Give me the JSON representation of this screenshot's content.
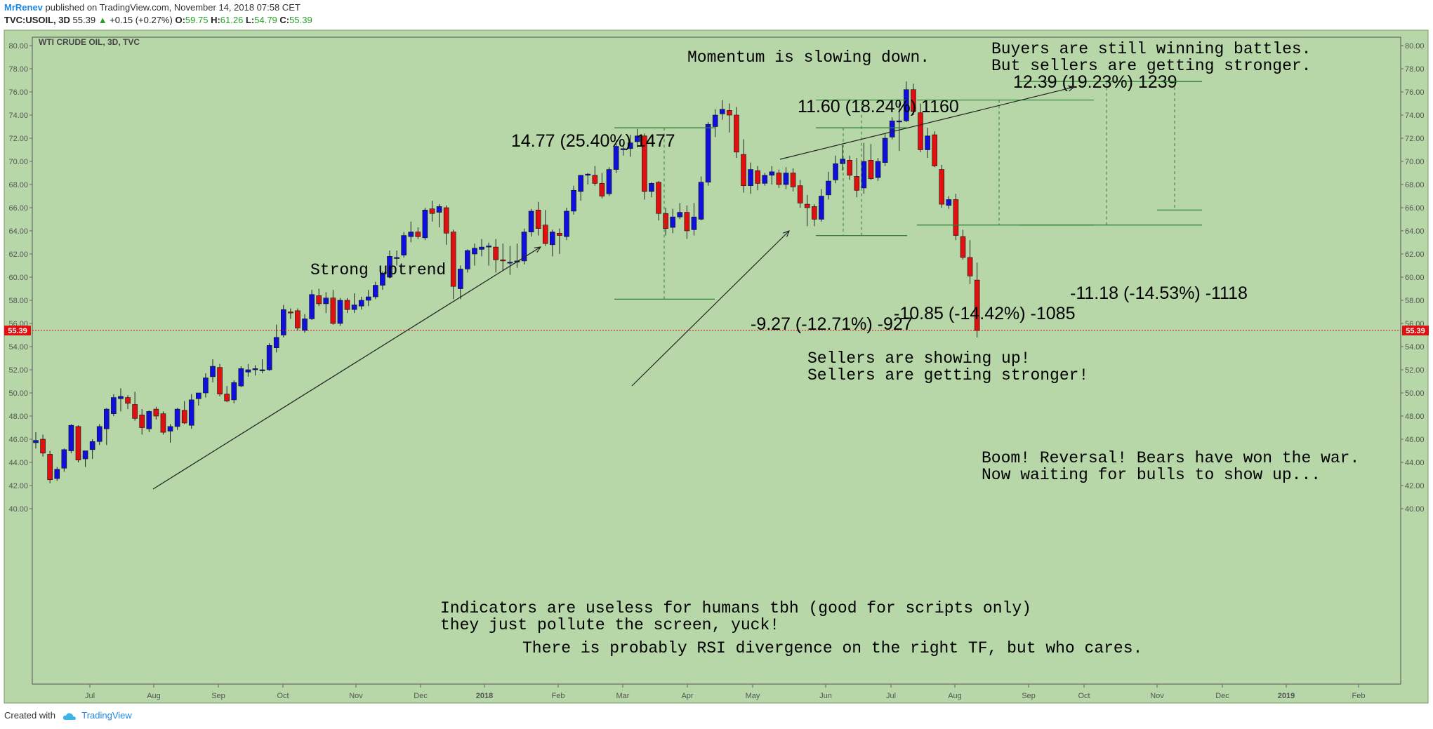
{
  "header": {
    "author": "MrRenev",
    "published": "published on TradingView.com, November 14, 2018 07:58 CET",
    "symbol": "TVC:USOIL, 3D",
    "last": "55.39",
    "up_arrow": "▲",
    "change": "+0.15 (+0.27%)",
    "o_label": "O:",
    "o_value": "59.75",
    "h_label": "H:",
    "h_value": "61.26",
    "l_label": "L:",
    "l_value": "54.79",
    "c_label": "C:",
    "c_value": "55.39"
  },
  "footer": {
    "created_with": "Created with",
    "tv_icon": "tradingview-cloud-icon",
    "brand": "TradingView"
  },
  "colors": {
    "background": "#b7d7a8",
    "bull": "#1010dd",
    "bear": "#e01010",
    "price_line": "#e01010",
    "measure": "#2e7d32",
    "author": "#1e88e5"
  },
  "chart_data": {
    "type": "candlestick",
    "title": "WTI CRUDE OIL, 3D, TVC",
    "ylim": [
      38.5,
      81.0
    ],
    "y_ticks": [
      "40.00",
      "42.00",
      "44.00",
      "46.00",
      "48.00",
      "50.00",
      "52.00",
      "54.00",
      "56.00",
      "58.00",
      "60.00",
      "62.00",
      "64.00",
      "66.00",
      "68.00",
      "70.00",
      "72.00",
      "74.00",
      "76.00",
      "78.00",
      "80.00"
    ],
    "x_ticks": [
      "Jul",
      "Aug",
      "Sep",
      "Oct",
      "Nov",
      "Dec",
      "2018",
      "Feb",
      "Mar",
      "Apr",
      "May",
      "Jun",
      "Jul",
      "Aug",
      "Sep",
      "Oct",
      "Nov",
      "Dec",
      "2019",
      "Feb"
    ],
    "last_price": "55.39",
    "candles": [
      {
        "o": 45.7,
        "h": 46.6,
        "l": 45.2,
        "c": 45.9
      },
      {
        "o": 46.0,
        "h": 46.4,
        "l": 44.5,
        "c": 44.8
      },
      {
        "o": 44.7,
        "h": 45.0,
        "l": 42.2,
        "c": 42.5
      },
      {
        "o": 42.6,
        "h": 43.6,
        "l": 42.4,
        "c": 43.4
      },
      {
        "o": 43.5,
        "h": 45.2,
        "l": 43.2,
        "c": 45.1
      },
      {
        "o": 45.0,
        "h": 47.3,
        "l": 44.8,
        "c": 47.2
      },
      {
        "o": 47.1,
        "h": 47.2,
        "l": 44.0,
        "c": 44.2
      },
      {
        "o": 44.3,
        "h": 45.0,
        "l": 43.6,
        "c": 45.0
      },
      {
        "o": 45.1,
        "h": 46.0,
        "l": 44.3,
        "c": 45.8
      },
      {
        "o": 45.8,
        "h": 47.3,
        "l": 45.5,
        "c": 47.1
      },
      {
        "o": 46.9,
        "h": 48.7,
        "l": 45.5,
        "c": 48.6
      },
      {
        "o": 48.2,
        "h": 49.9,
        "l": 48.0,
        "c": 49.6
      },
      {
        "o": 49.5,
        "h": 50.4,
        "l": 48.4,
        "c": 49.7
      },
      {
        "o": 49.6,
        "h": 49.8,
        "l": 48.6,
        "c": 49.1
      },
      {
        "o": 49.0,
        "h": 50.1,
        "l": 47.6,
        "c": 47.8
      },
      {
        "o": 48.1,
        "h": 48.6,
        "l": 46.4,
        "c": 47.0
      },
      {
        "o": 46.9,
        "h": 48.5,
        "l": 46.6,
        "c": 48.4
      },
      {
        "o": 48.6,
        "h": 48.8,
        "l": 47.7,
        "c": 48.0
      },
      {
        "o": 48.2,
        "h": 48.4,
        "l": 46.4,
        "c": 46.6
      },
      {
        "o": 46.7,
        "h": 47.3,
        "l": 45.7,
        "c": 47.1
      },
      {
        "o": 47.1,
        "h": 48.7,
        "l": 46.8,
        "c": 48.6
      },
      {
        "o": 48.5,
        "h": 49.3,
        "l": 47.3,
        "c": 47.4
      },
      {
        "o": 47.2,
        "h": 49.9,
        "l": 46.9,
        "c": 49.4
      },
      {
        "o": 49.5,
        "h": 50.0,
        "l": 48.9,
        "c": 50.0
      },
      {
        "o": 50.0,
        "h": 51.7,
        "l": 49.6,
        "c": 51.3
      },
      {
        "o": 51.4,
        "h": 52.9,
        "l": 50.9,
        "c": 52.3
      },
      {
        "o": 52.2,
        "h": 52.5,
        "l": 49.7,
        "c": 49.9
      },
      {
        "o": 49.9,
        "h": 50.6,
        "l": 49.2,
        "c": 49.3
      },
      {
        "o": 49.4,
        "h": 51.1,
        "l": 49.1,
        "c": 50.9
      },
      {
        "o": 50.6,
        "h": 52.3,
        "l": 50.5,
        "c": 52.1
      },
      {
        "o": 51.8,
        "h": 52.5,
        "l": 51.4,
        "c": 52.0
      },
      {
        "o": 52.0,
        "h": 52.4,
        "l": 51.5,
        "c": 52.1
      },
      {
        "o": 52.0,
        "h": 52.9,
        "l": 51.7,
        "c": 52.0
      },
      {
        "o": 52.0,
        "h": 54.3,
        "l": 51.9,
        "c": 54.1
      },
      {
        "o": 53.9,
        "h": 55.9,
        "l": 53.5,
        "c": 54.8
      },
      {
        "o": 55.0,
        "h": 57.6,
        "l": 54.8,
        "c": 57.2
      },
      {
        "o": 57.0,
        "h": 57.3,
        "l": 56.4,
        "c": 56.9
      },
      {
        "o": 57.1,
        "h": 57.3,
        "l": 55.4,
        "c": 55.6
      },
      {
        "o": 55.4,
        "h": 56.8,
        "l": 55.2,
        "c": 56.4
      },
      {
        "o": 56.4,
        "h": 58.9,
        "l": 56.3,
        "c": 58.5
      },
      {
        "o": 58.4,
        "h": 59.0,
        "l": 57.5,
        "c": 57.7
      },
      {
        "o": 57.7,
        "h": 58.7,
        "l": 56.9,
        "c": 58.2
      },
      {
        "o": 58.2,
        "h": 58.9,
        "l": 55.9,
        "c": 56.0
      },
      {
        "o": 56.0,
        "h": 58.2,
        "l": 55.8,
        "c": 58.0
      },
      {
        "o": 58.0,
        "h": 58.2,
        "l": 56.9,
        "c": 57.2
      },
      {
        "o": 57.2,
        "h": 58.6,
        "l": 56.9,
        "c": 57.6
      },
      {
        "o": 57.5,
        "h": 58.3,
        "l": 57.2,
        "c": 58.0
      },
      {
        "o": 58.0,
        "h": 58.9,
        "l": 57.5,
        "c": 58.3
      },
      {
        "o": 58.3,
        "h": 59.6,
        "l": 58.1,
        "c": 59.3
      },
      {
        "o": 59.3,
        "h": 60.5,
        "l": 58.9,
        "c": 60.3
      },
      {
        "o": 60.0,
        "h": 62.3,
        "l": 59.9,
        "c": 61.8
      },
      {
        "o": 61.7,
        "h": 62.3,
        "l": 61.0,
        "c": 61.7
      },
      {
        "o": 61.9,
        "h": 63.9,
        "l": 61.7,
        "c": 63.6
      },
      {
        "o": 63.5,
        "h": 64.8,
        "l": 63.0,
        "c": 63.9
      },
      {
        "o": 63.9,
        "h": 64.3,
        "l": 63.3,
        "c": 63.5
      },
      {
        "o": 63.4,
        "h": 66.0,
        "l": 63.2,
        "c": 65.8
      },
      {
        "o": 65.9,
        "h": 66.6,
        "l": 64.8,
        "c": 65.5
      },
      {
        "o": 65.6,
        "h": 66.3,
        "l": 64.3,
        "c": 66.1
      },
      {
        "o": 66.0,
        "h": 66.2,
        "l": 62.8,
        "c": 63.8
      },
      {
        "o": 63.9,
        "h": 64.1,
        "l": 58.1,
        "c": 59.2
      },
      {
        "o": 59.0,
        "h": 61.0,
        "l": 58.1,
        "c": 60.7
      },
      {
        "o": 60.7,
        "h": 62.4,
        "l": 60.4,
        "c": 62.3
      },
      {
        "o": 62.0,
        "h": 62.9,
        "l": 61.0,
        "c": 62.5
      },
      {
        "o": 62.4,
        "h": 63.3,
        "l": 61.8,
        "c": 62.6
      },
      {
        "o": 62.6,
        "h": 63.0,
        "l": 61.0,
        "c": 62.7
      },
      {
        "o": 62.6,
        "h": 63.3,
        "l": 60.4,
        "c": 61.5
      },
      {
        "o": 61.5,
        "h": 62.9,
        "l": 60.6,
        "c": 61.4
      },
      {
        "o": 61.3,
        "h": 62.7,
        "l": 60.2,
        "c": 61.3
      },
      {
        "o": 61.3,
        "h": 62.9,
        "l": 60.8,
        "c": 61.4
      },
      {
        "o": 61.4,
        "h": 64.2,
        "l": 61.1,
        "c": 63.9
      },
      {
        "o": 63.9,
        "h": 65.9,
        "l": 63.5,
        "c": 65.7
      },
      {
        "o": 65.8,
        "h": 66.5,
        "l": 63.6,
        "c": 64.2
      },
      {
        "o": 64.5,
        "h": 65.8,
        "l": 62.7,
        "c": 62.9
      },
      {
        "o": 62.8,
        "h": 64.1,
        "l": 61.8,
        "c": 63.9
      },
      {
        "o": 63.8,
        "h": 64.2,
        "l": 62.0,
        "c": 63.6
      },
      {
        "o": 63.5,
        "h": 66.0,
        "l": 63.2,
        "c": 65.7
      },
      {
        "o": 65.7,
        "h": 67.9,
        "l": 65.4,
        "c": 67.5
      },
      {
        "o": 67.4,
        "h": 68.7,
        "l": 66.6,
        "c": 68.8
      },
      {
        "o": 68.8,
        "h": 69.0,
        "l": 68.0,
        "c": 68.9
      },
      {
        "o": 68.8,
        "h": 69.6,
        "l": 67.9,
        "c": 68.1
      },
      {
        "o": 68.1,
        "h": 69.0,
        "l": 66.8,
        "c": 67.0
      },
      {
        "o": 67.2,
        "h": 69.5,
        "l": 67.0,
        "c": 69.3
      },
      {
        "o": 69.3,
        "h": 71.8,
        "l": 69.0,
        "c": 71.3
      },
      {
        "o": 71.0,
        "h": 71.5,
        "l": 70.5,
        "c": 71.1
      },
      {
        "o": 71.1,
        "h": 72.3,
        "l": 70.4,
        "c": 71.6
      },
      {
        "o": 71.7,
        "h": 72.8,
        "l": 71.2,
        "c": 72.2
      },
      {
        "o": 72.2,
        "h": 72.4,
        "l": 66.7,
        "c": 67.4
      },
      {
        "o": 67.4,
        "h": 68.2,
        "l": 66.9,
        "c": 68.1
      },
      {
        "o": 68.2,
        "h": 68.3,
        "l": 64.9,
        "c": 65.5
      },
      {
        "o": 65.5,
        "h": 66.0,
        "l": 63.6,
        "c": 64.2
      },
      {
        "o": 64.3,
        "h": 65.9,
        "l": 63.8,
        "c": 65.2
      },
      {
        "o": 65.2,
        "h": 66.4,
        "l": 65.0,
        "c": 65.6
      },
      {
        "o": 65.6,
        "h": 66.2,
        "l": 63.3,
        "c": 64.0
      },
      {
        "o": 64.1,
        "h": 66.4,
        "l": 63.6,
        "c": 65.2
      },
      {
        "o": 65.0,
        "h": 68.7,
        "l": 64.9,
        "c": 68.2
      },
      {
        "o": 68.2,
        "h": 73.4,
        "l": 67.9,
        "c": 73.2
      },
      {
        "o": 73.0,
        "h": 74.5,
        "l": 72.1,
        "c": 74.0
      },
      {
        "o": 74.1,
        "h": 75.3,
        "l": 73.6,
        "c": 74.5
      },
      {
        "o": 74.4,
        "h": 75.0,
        "l": 72.5,
        "c": 74.0
      },
      {
        "o": 74.0,
        "h": 74.7,
        "l": 70.3,
        "c": 70.8
      },
      {
        "o": 70.6,
        "h": 71.9,
        "l": 67.3,
        "c": 67.9
      },
      {
        "o": 67.9,
        "h": 69.9,
        "l": 67.2,
        "c": 69.3
      },
      {
        "o": 69.2,
        "h": 69.6,
        "l": 67.5,
        "c": 68.1
      },
      {
        "o": 68.1,
        "h": 69.0,
        "l": 67.9,
        "c": 68.8
      },
      {
        "o": 68.8,
        "h": 69.6,
        "l": 68.0,
        "c": 69.1
      },
      {
        "o": 69.0,
        "h": 69.3,
        "l": 67.7,
        "c": 68.0
      },
      {
        "o": 68.0,
        "h": 69.5,
        "l": 67.6,
        "c": 69.0
      },
      {
        "o": 69.0,
        "h": 69.4,
        "l": 67.4,
        "c": 67.8
      },
      {
        "o": 67.9,
        "h": 68.4,
        "l": 66.0,
        "c": 66.4
      },
      {
        "o": 66.3,
        "h": 67.1,
        "l": 64.4,
        "c": 66.0
      },
      {
        "o": 66.1,
        "h": 66.3,
        "l": 64.4,
        "c": 65.0
      },
      {
        "o": 65.0,
        "h": 67.6,
        "l": 64.8,
        "c": 67.0
      },
      {
        "o": 67.1,
        "h": 69.1,
        "l": 66.7,
        "c": 68.3
      },
      {
        "o": 68.4,
        "h": 70.5,
        "l": 68.1,
        "c": 69.8
      },
      {
        "o": 69.8,
        "h": 71.4,
        "l": 69.2,
        "c": 70.2
      },
      {
        "o": 70.1,
        "h": 70.5,
        "l": 68.4,
        "c": 68.8
      },
      {
        "o": 68.7,
        "h": 70.3,
        "l": 66.9,
        "c": 67.5
      },
      {
        "o": 67.7,
        "h": 71.6,
        "l": 67.2,
        "c": 70.0
      },
      {
        "o": 70.1,
        "h": 71.5,
        "l": 68.4,
        "c": 68.5
      },
      {
        "o": 68.6,
        "h": 70.3,
        "l": 68.3,
        "c": 70.0
      },
      {
        "o": 69.9,
        "h": 72.4,
        "l": 69.6,
        "c": 72.0
      },
      {
        "o": 72.1,
        "h": 73.8,
        "l": 71.9,
        "c": 73.5
      },
      {
        "o": 73.4,
        "h": 75.0,
        "l": 70.9,
        "c": 73.5
      },
      {
        "o": 73.5,
        "h": 76.9,
        "l": 73.4,
        "c": 76.2
      },
      {
        "o": 76.2,
        "h": 76.7,
        "l": 74.0,
        "c": 74.3
      },
      {
        "o": 74.2,
        "h": 75.0,
        "l": 70.8,
        "c": 71.0
      },
      {
        "o": 71.0,
        "h": 72.9,
        "l": 70.3,
        "c": 72.2
      },
      {
        "o": 72.3,
        "h": 72.6,
        "l": 69.5,
        "c": 69.6
      },
      {
        "o": 69.3,
        "h": 69.7,
        "l": 66.0,
        "c": 66.3
      },
      {
        "o": 66.2,
        "h": 67.0,
        "l": 65.9,
        "c": 66.7
      },
      {
        "o": 66.7,
        "h": 67.2,
        "l": 63.2,
        "c": 63.6
      },
      {
        "o": 63.5,
        "h": 64.1,
        "l": 61.5,
        "c": 61.7
      },
      {
        "o": 61.7,
        "h": 63.2,
        "l": 59.4,
        "c": 60.1
      },
      {
        "o": 59.75,
        "h": 61.26,
        "l": 54.79,
        "c": 55.39
      }
    ],
    "annotations": [
      "Momentum is slowing down.",
      "Buyers are still winning battles.",
      "But sellers are getting stronger.",
      "Strong uptrend",
      "Sellers are showing up!",
      "Sellers are getting stronger!",
      "Boom! Reversal! Bears have won the war.",
      "Now waiting for bulls to show up...",
      "Indicators are useless for humans tbh (good for scripts only)",
      "they just pollute the screen, yuck!",
      "There is probably RSI divergence on the right TF, but who cares."
    ],
    "measurements": [
      {
        "label": "14.77 (25.40%) 1477",
        "from": 58.1,
        "to": 72.9
      },
      {
        "label": "11.60 (18.24%) 1160",
        "from": 63.6,
        "to": 75.3
      },
      {
        "label": "12.39 (19.23%) 1239",
        "from": 64.5,
        "to": 76.9
      },
      {
        "label": "-9.27 (-12.71%) -927",
        "from": 72.9,
        "to": 63.6
      },
      {
        "label": "-10.85 (-14.42%) -1085",
        "from": 75.3,
        "to": 64.5
      },
      {
        "label": "-11.18 (-14.53%) -1118",
        "from": 76.9,
        "to": 65.8
      }
    ]
  }
}
